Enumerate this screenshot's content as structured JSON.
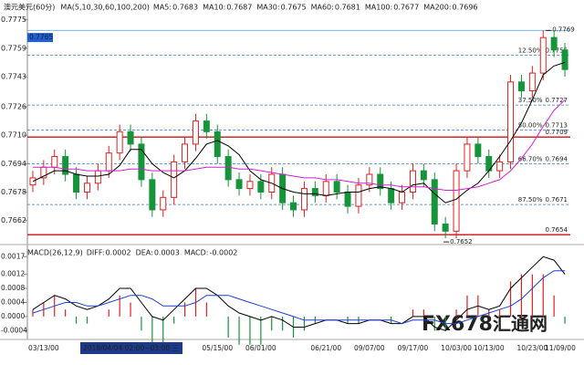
{
  "chart_data": {
    "type": "candlestick",
    "title": "澳元美元",
    "period": "(60分)",
    "ma_label": "MA(5,10,30,60,100,200)",
    "ma_readings": [
      {
        "name": "MA5:",
        "value": 0.7683,
        "color": "#000000"
      },
      {
        "name": "MA10:",
        "value": 0.7687,
        "color": "#1f3fd0"
      },
      {
        "name": "MA30:",
        "value": 0.7675,
        "color": "#d020d0"
      },
      {
        "name": "MA60:",
        "value": 0.7681,
        "color": "#e08000"
      },
      {
        "name": "MA100:",
        "value": 0.7677,
        "color": "#707070"
      },
      {
        "name": "MA200:",
        "value": 0.7696,
        "color": "#b03010"
      }
    ],
    "last_price": 0.7765,
    "categories": [
      null,
      "03/13/00",
      null,
      null,
      null,
      null,
      null,
      null,
      null,
      null,
      null,
      null,
      null,
      null,
      null,
      null,
      null,
      "05/15/00",
      null,
      null,
      null,
      "06/01/00",
      null,
      null,
      null,
      null,
      null,
      "06/21/00",
      null,
      null,
      null,
      "09/07/00",
      null,
      null,
      null,
      "09/17/00",
      null,
      null,
      null,
      "10/03/00",
      null,
      null,
      "10/13/00",
      null,
      null,
      null,
      "10/23/00",
      null,
      null,
      "11/09/00"
    ],
    "open": [
      0.7682,
      0.7686,
      0.7692,
      0.7698,
      0.7688,
      0.7678,
      0.7683,
      0.769,
      0.77,
      0.7712,
      0.7705,
      0.7685,
      0.7668,
      0.7675,
      0.7695,
      0.7705,
      0.7718,
      0.7712,
      0.7698,
      0.7685,
      0.768,
      0.7684,
      0.7678,
      0.7688,
      0.7672,
      0.7668,
      0.768,
      0.7676,
      0.7684,
      0.7678,
      0.767,
      0.7682,
      0.7688,
      0.768,
      0.7672,
      0.7678,
      0.769,
      0.7685,
      0.766,
      0.7656,
      0.769,
      0.7705,
      0.7698,
      0.769,
      0.7695,
      0.774,
      0.7735,
      0.7745,
      0.7765,
      0.7758
    ],
    "high": [
      0.769,
      0.7696,
      0.7702,
      0.7702,
      0.7692,
      0.7687,
      0.7694,
      0.7704,
      0.7716,
      0.7716,
      0.7709,
      0.7689,
      0.7679,
      0.7699,
      0.7709,
      0.7722,
      0.7722,
      0.7716,
      0.7702,
      0.7689,
      0.7688,
      0.7688,
      0.7692,
      0.7692,
      0.7676,
      0.7684,
      0.7684,
      0.7688,
      0.7688,
      0.7682,
      0.7686,
      0.7692,
      0.7692,
      0.7684,
      0.7682,
      0.7694,
      0.7694,
      0.7689,
      0.7664,
      0.7694,
      0.7709,
      0.7709,
      0.7702,
      0.7699,
      0.7744,
      0.7744,
      0.7749,
      0.7769,
      0.7769,
      0.7762
    ],
    "low": [
      0.7678,
      0.7682,
      0.7688,
      0.7684,
      0.7674,
      0.7674,
      0.7679,
      0.7686,
      0.7696,
      0.7701,
      0.7681,
      0.7664,
      0.7664,
      0.7671,
      0.7691,
      0.7701,
      0.7708,
      0.7694,
      0.7681,
      0.7676,
      0.7676,
      0.7674,
      0.7674,
      0.7668,
      0.7664,
      0.7664,
      0.7672,
      0.7672,
      0.7674,
      0.7666,
      0.7666,
      0.7678,
      0.7676,
      0.7668,
      0.7668,
      0.7674,
      0.7681,
      0.7656,
      0.7652,
      0.7652,
      0.7686,
      0.7694,
      0.7686,
      0.7686,
      0.7691,
      0.7731,
      0.7731,
      0.7741,
      0.7754,
      0.7743
    ],
    "close": [
      0.7686,
      0.7692,
      0.7698,
      0.7688,
      0.7678,
      0.7683,
      0.769,
      0.77,
      0.7712,
      0.7705,
      0.7685,
      0.7668,
      0.7675,
      0.7695,
      0.7705,
      0.7718,
      0.7712,
      0.7698,
      0.7685,
      0.768,
      0.7684,
      0.7678,
      0.7688,
      0.7672,
      0.7668,
      0.768,
      0.7676,
      0.7684,
      0.7678,
      0.767,
      0.7682,
      0.7688,
      0.768,
      0.7672,
      0.7678,
      0.769,
      0.7685,
      0.766,
      0.7656,
      0.769,
      0.7705,
      0.7698,
      0.769,
      0.7695,
      0.774,
      0.7735,
      0.7745,
      0.7765,
      0.7758,
      0.7747
    ],
    "up_color": "#e02020",
    "down_color": "#16943a",
    "ma_lines": [
      {
        "color": "#000000",
        "values": [
          0.7684,
          0.7687,
          0.769,
          0.769,
          0.7688,
          0.7687,
          0.7687,
          0.7688,
          0.7693,
          0.7702,
          0.7702,
          0.7694,
          0.7689,
          0.7686,
          0.769,
          0.7697,
          0.7705,
          0.7707,
          0.7704,
          0.7699,
          0.769,
          0.7685,
          0.7683,
          0.768,
          0.7678,
          0.7677,
          0.7677,
          0.7676,
          0.7677,
          0.7678,
          0.7678,
          0.768,
          0.7681,
          0.768,
          0.7678,
          0.7682,
          0.7683,
          0.7677,
          0.7672,
          0.7674,
          0.7679,
          0.7683,
          0.769,
          0.7698,
          0.7707,
          0.7717,
          0.773,
          0.7744,
          0.7749,
          0.7751
        ]
      },
      {
        "color": "#d020d0",
        "values": [
          0.7692,
          0.7692,
          0.7692,
          0.7691,
          0.7691,
          0.769,
          0.769,
          0.769,
          0.769,
          0.7691,
          0.7691,
          0.769,
          0.769,
          0.769,
          0.769,
          0.7691,
          0.7692,
          0.7692,
          0.7692,
          0.7691,
          0.7691,
          0.769,
          0.7689,
          0.7688,
          0.7687,
          0.7686,
          0.7686,
          0.7685,
          0.7685,
          0.7684,
          0.7683,
          0.7683,
          0.7682,
          0.7682,
          0.7681,
          0.7681,
          0.7681,
          0.768,
          0.7679,
          0.7679,
          0.768,
          0.7681,
          0.7683,
          0.7685,
          0.769,
          0.7697,
          0.7705,
          0.7715,
          0.7724,
          0.773
        ]
      }
    ],
    "levels": [
      {
        "price": 0.7755,
        "pct": "12.50%",
        "color": "#3d78d0",
        "style": "dashed"
      },
      {
        "price": 0.7727,
        "pct": "37.50%",
        "color": "#3d78d0",
        "style": "dashed"
      },
      {
        "price": 0.7713,
        "pct": "50.00%",
        "color": "#3d78d0",
        "style": "dashed"
      },
      {
        "price": 0.7709,
        "color": "#d01010",
        "style": "solid"
      },
      {
        "price": 0.7694,
        "pct": "66.70%",
        "color": "#3d78d0",
        "style": "dashed"
      },
      {
        "price": 0.7671,
        "pct": "87.50%",
        "color": "#3d78d0",
        "style": "dashed"
      },
      {
        "price": 0.7654,
        "color": "#d01010",
        "style": "solid"
      }
    ],
    "high_mark": 0.7769,
    "low_mark": 0.7652,
    "ylim": [
      0.765,
      0.7781
    ],
    "yticks": [
      0.7775,
      0.7759,
      0.7743,
      0.7726,
      {
        "value": 0.771,
        "label": "0.7710"
      },
      0.7694,
      0.7678,
      0.7662
    ],
    "tooltip": "2018/04/04 02:00~03:00 三",
    "watermark": [
      "FX678",
      "汇通网"
    ],
    "macd": {
      "title": "MACD(26,12,9)",
      "readings": [
        {
          "name": "DIFF:",
          "value": 0.0002,
          "color": "#000000"
        },
        {
          "name": "DEA:",
          "value": 0.0003,
          "color": "#1f3fd0"
        },
        {
          "name": "MACD:",
          "value": -0.0002,
          "color": "#d020d0"
        }
      ],
      "diff": [
        0.0002,
        0.0004,
        0.0006,
        0.0005,
        0.0003,
        0.0002,
        0.0003,
        0.0005,
        0.0008,
        0.0008,
        0.0004,
        0,
        -0.0001,
        0.0002,
        0.0005,
        0.0008,
        0.0008,
        0.0006,
        0.0003,
        0.0001,
        0,
        -0.0001,
        0,
        -0.0001,
        -0.0003,
        -0.0003,
        -0.0002,
        -0.0001,
        -0.0001,
        -0.0002,
        -0.0002,
        -0.0001,
        -0.0001,
        -0.0002,
        -0.0002,
        0,
        0,
        -0.0003,
        -0.0004,
        -0.0001,
        0.0002,
        0.0003,
        0.0002,
        0.0003,
        0.0008,
        0.0011,
        0.0014,
        0.0017,
        0.0016,
        0.0012
      ],
      "dea": [
        0.0001,
        0.0002,
        0.0003,
        0.0004,
        0.0004,
        0.0003,
        0.0003,
        0.0004,
        0.0005,
        0.0006,
        0.0006,
        0.0005,
        0.0003,
        0.0003,
        0.0003,
        0.0004,
        0.0006,
        0.0006,
        0.0006,
        0.0005,
        0.0004,
        0.0003,
        0.0002,
        0.0001,
        0,
        -0.0001,
        -0.0001,
        -0.0001,
        -0.0001,
        -0.0001,
        -0.0001,
        -0.0001,
        -0.0001,
        -0.0001,
        -0.0002,
        -0.0001,
        -0.0001,
        -0.0001,
        -0.0002,
        -0.0002,
        -0.0001,
        0,
        0.0001,
        0.0002,
        0.0003,
        0.0005,
        0.0008,
        0.0011,
        0.0013,
        0.0013
      ],
      "hist": [
        0.0002,
        0.0004,
        0.0006,
        0.0002,
        -0.0002,
        -0.0002,
        0,
        0.0002,
        0.0006,
        0.0004,
        -0.0004,
        -0.001,
        -0.0008,
        -0.0002,
        0.0004,
        0.0008,
        0.0004,
        0,
        -0.0006,
        -0.0008,
        -0.0008,
        -0.0008,
        -0.0004,
        -0.0004,
        -0.0006,
        -0.0004,
        -0.0002,
        0,
        0,
        -0.0002,
        -0.0002,
        0,
        0,
        -0.0002,
        0,
        0.0002,
        0.0002,
        -0.0004,
        -0.0004,
        0.0002,
        0.0006,
        0.0006,
        0.0002,
        0.0002,
        0.001,
        0.0012,
        0.0012,
        0.0012,
        0.0006,
        -0.0002
      ],
      "ylim": [
        -0.00065,
        0.00194
      ],
      "yticks": [
        0.0017,
        0.0012,
        0.0008,
        0.0004,
        {
          "value": 0,
          "label": "0.0000"
        },
        -0.0004
      ]
    }
  }
}
